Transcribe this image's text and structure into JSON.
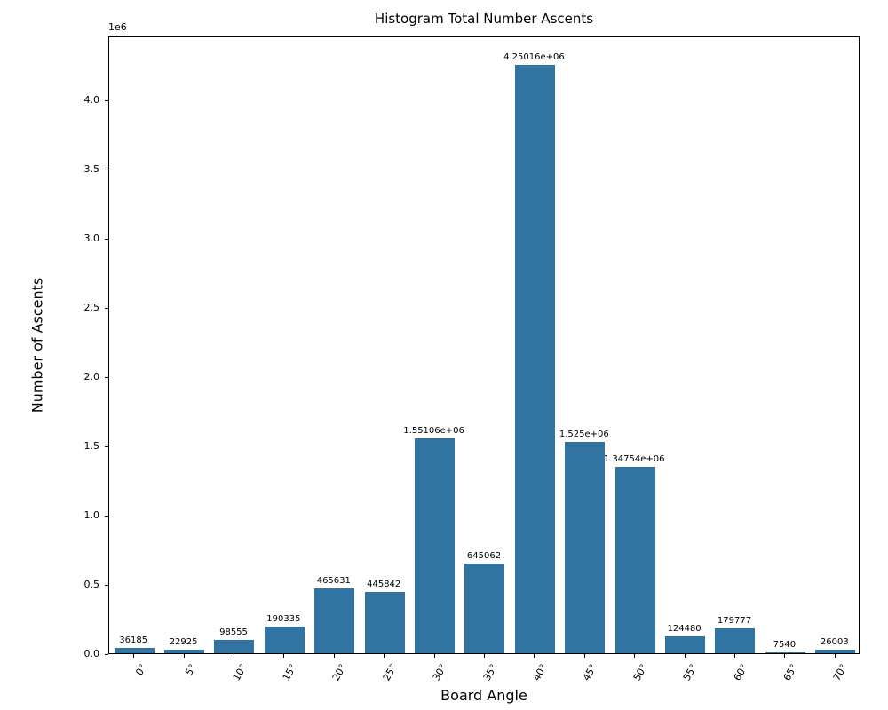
{
  "title": "Histogram Total Number Ascents",
  "axes": {
    "xlabel": "Board Angle",
    "ylabel": "Number of Ascents",
    "y_offset_label": "1e6"
  },
  "colors": {
    "bar": "#3274a1",
    "axis": "#000000",
    "text": "#000000",
    "background": "#ffffff"
  },
  "chart_data": {
    "type": "bar",
    "title": "Histogram Total Number Ascents",
    "xlabel": "Board Angle",
    "ylabel": "Number of Ascents",
    "categories": [
      "0°",
      "5°",
      "10°",
      "15°",
      "20°",
      "25°",
      "30°",
      "35°",
      "40°",
      "45°",
      "50°",
      "55°",
      "60°",
      "65°",
      "70°"
    ],
    "values": [
      36185,
      22925,
      98555,
      190335,
      465631,
      445842,
      1551060,
      645062,
      4250160,
      1525000,
      1347540,
      124480,
      179777,
      7540,
      26003
    ],
    "bar_labels": [
      "36185",
      "22925",
      "98555",
      "190335",
      "465631",
      "445842",
      "1.55106e+06",
      "645062",
      "4.25016e+06",
      "1.525e+06",
      "1.34754e+06",
      "124480",
      "179777",
      "7540",
      "26003"
    ],
    "ylim": [
      0,
      4462668
    ],
    "yticks": {
      "values": [
        0,
        500000,
        1000000,
        1500000,
        2000000,
        2500000,
        3000000,
        3500000,
        4000000
      ],
      "labels": [
        "0.0",
        "0.5",
        "1.0",
        "1.5",
        "2.0",
        "2.5",
        "3.0",
        "3.5",
        "4.0"
      ]
    },
    "y_multiplier_label": "1e6",
    "x_tick_rotation_deg": 60,
    "grid": false,
    "legend": null,
    "bar_color": "#3274a1"
  }
}
